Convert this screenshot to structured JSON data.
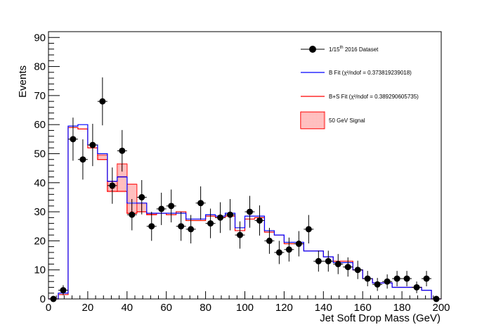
{
  "chart_data": {
    "type": "histogram",
    "xlabel": "Jet Soft Drop Mass (GeV)",
    "ylabel": "Events",
    "xlim": [
      0,
      200
    ],
    "ylim": [
      0,
      92
    ],
    "x_ticks": [
      0,
      20,
      40,
      60,
      80,
      100,
      120,
      140,
      160,
      180,
      200
    ],
    "y_ticks": [
      0,
      10,
      20,
      30,
      40,
      50,
      60,
      70,
      80,
      90
    ],
    "grid": false,
    "legend_position": "top-right",
    "legend": {
      "data_pre": "1/15",
      "data_sup": "th",
      "data_post": " 2016 Dataset",
      "bfit": "B Fit (χ²/ndof = 0.373819239018)",
      "bsfit": "B+S Fit (χ²/ndof = 0.389290605735)",
      "signal": "50 GeV Signal"
    },
    "colors": {
      "b_fit": "#0000ff",
      "bs_fit": "#ff0000",
      "signal_hatch": "#ff0000",
      "data": "#000000"
    },
    "bin_edges": [
      0,
      5,
      10,
      15,
      20,
      25,
      30,
      35,
      40,
      45,
      50,
      55,
      60,
      65,
      70,
      75,
      80,
      85,
      90,
      95,
      100,
      105,
      110,
      115,
      120,
      125,
      130,
      135,
      140,
      145,
      150,
      155,
      160,
      165,
      170,
      175,
      180,
      185,
      190,
      195,
      200
    ],
    "series": [
      {
        "name": "B Fit",
        "values": [
          0,
          2,
          59.5,
          60,
          53,
          50,
          40.5,
          42,
          33,
          33,
          29.5,
          29.5,
          29.5,
          29.5,
          27.5,
          27.5,
          29,
          28.5,
          29.5,
          24.5,
          28.5,
          28.5,
          23.5,
          22,
          19.5,
          19.5,
          16.5,
          16.5,
          14.5,
          12.5,
          12.5,
          10,
          7,
          5.5,
          5.5,
          4,
          4,
          4,
          3,
          0
        ]
      },
      {
        "name": "B+S Fit",
        "values": [
          0,
          1.5,
          59,
          58.5,
          52,
          48,
          37,
          37,
          29.5,
          30,
          29,
          29.5,
          29,
          30,
          27,
          27,
          28.5,
          28,
          28.5,
          23.5,
          27.5,
          28,
          23,
          22,
          19,
          19,
          16.5,
          16.5,
          14.5,
          13,
          13,
          10,
          7,
          5.5,
          5.5,
          4,
          4,
          4,
          3,
          0
        ]
      },
      {
        "name": "50 GeV Signal",
        "bins_from": [
          25,
          30,
          35,
          40,
          45,
          50
        ],
        "bins_to": [
          30,
          35,
          40,
          45,
          50,
          55
        ],
        "bottom": [
          48,
          37,
          37,
          29.5,
          30,
          29
        ],
        "top": [
          49.5,
          40.5,
          46.5,
          39.5,
          33,
          29.5
        ]
      }
    ],
    "data_points": {
      "name": "1/15th 2016 Dataset",
      "x": [
        2.5,
        7.5,
        12.5,
        17.5,
        22.5,
        27.5,
        32.5,
        37.5,
        42.5,
        47.5,
        52.5,
        57.5,
        62.5,
        67.5,
        72.5,
        77.5,
        82.5,
        87.5,
        92.5,
        97.5,
        102.5,
        107.5,
        112.5,
        117.5,
        122.5,
        127.5,
        132.5,
        137.5,
        142.5,
        147.5,
        152.5,
        157.5,
        162.5,
        167.5,
        172.5,
        177.5,
        182.5,
        187.5,
        192.5,
        197.5
      ],
      "y": [
        0,
        3,
        55,
        48,
        53,
        68,
        39,
        51,
        29,
        35,
        25,
        31,
        32,
        25,
        24,
        33,
        26,
        28,
        29,
        22,
        30,
        27,
        20,
        16,
        17,
        19,
        24,
        13,
        13,
        12,
        11,
        10,
        7,
        5,
        6,
        7,
        7,
        4,
        7,
        0
      ]
    }
  }
}
